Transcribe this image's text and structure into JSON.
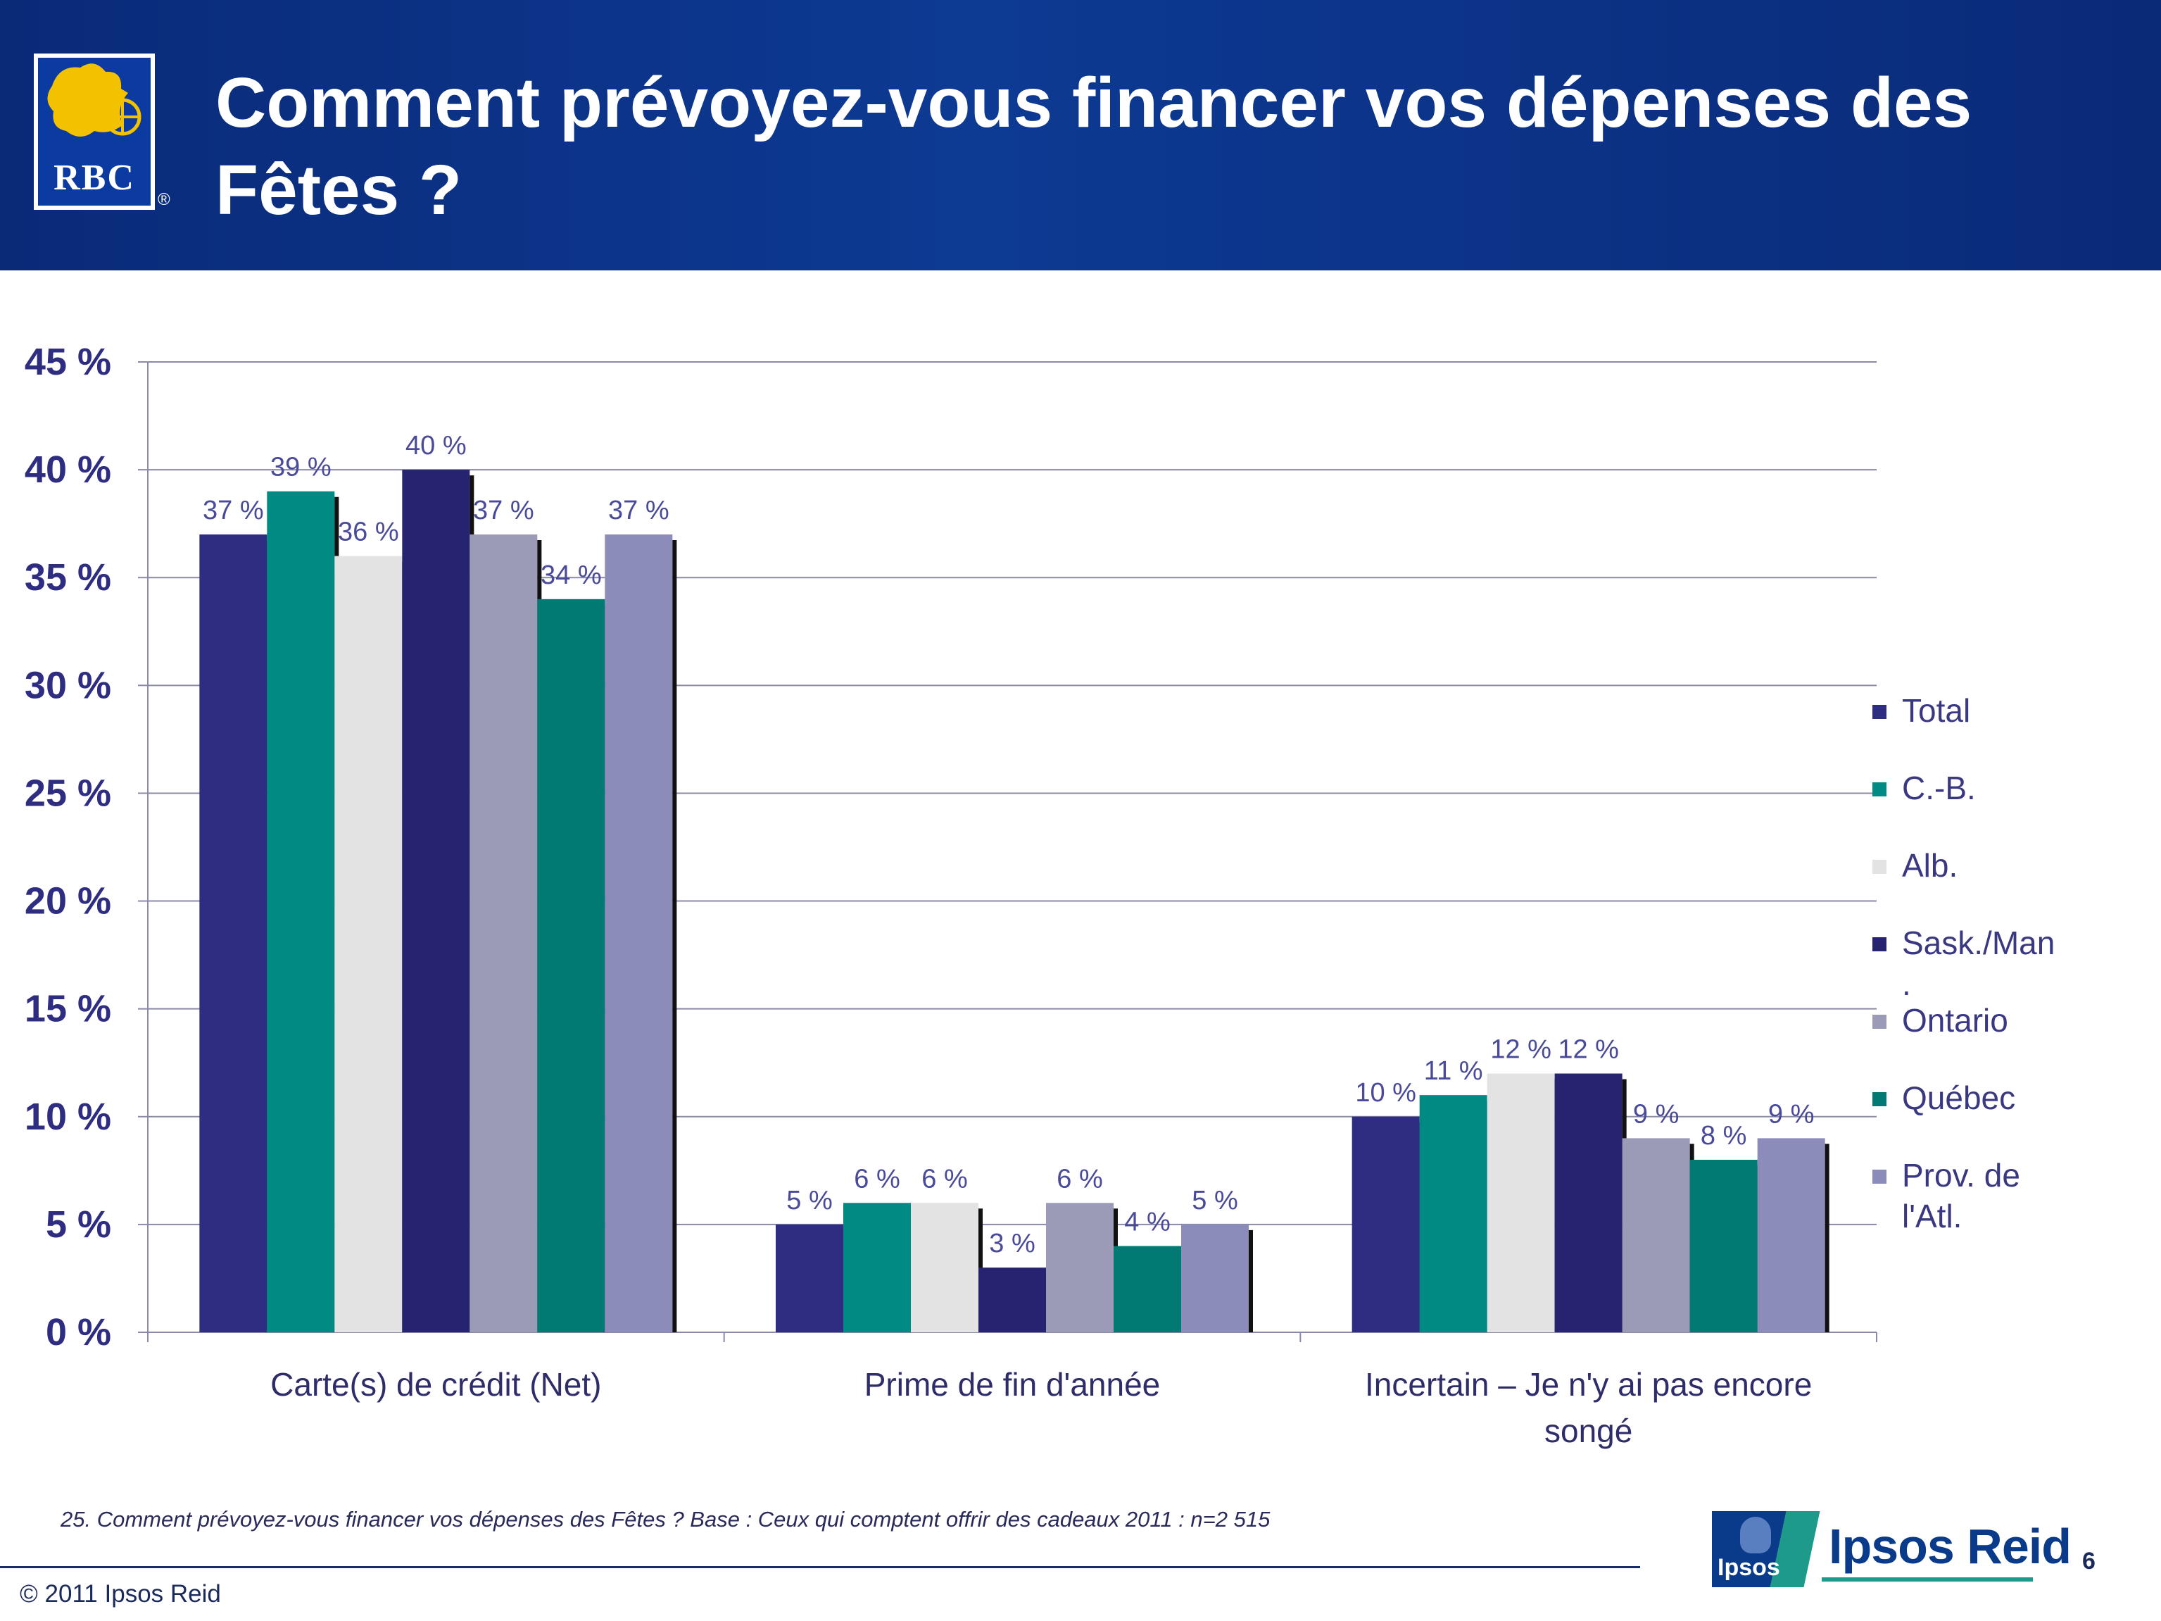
{
  "header": {
    "title": "Comment prévoyez-vous financer vos dépenses des Fêtes ?",
    "logo_text": "RBC",
    "registered_mark": "®"
  },
  "colors": {
    "header_bg": "#0d3a93",
    "total": "#2e2d82",
    "cb": "#008a84",
    "alb": "#e3e3e3",
    "sask": "#262470",
    "ontario": "#9b9bb8",
    "quebec": "#007a72",
    "atl": "#8c8cba"
  },
  "chart_data": {
    "type": "bar",
    "categories": [
      "Carte(s) de crédit (Net)",
      "Prime de fin d'année",
      "Incertain – Je n'y ai pas encore songé"
    ],
    "category_lines": [
      [
        "Carte(s) de crédit (Net)"
      ],
      [
        "Prime de fin d'année"
      ],
      [
        "Incertain – Je n'y ai pas encore",
        "songé"
      ]
    ],
    "series": [
      {
        "name": "Total",
        "values": [
          37,
          5,
          10
        ],
        "labels": [
          "37 %",
          "5 %",
          "10 %"
        ],
        "color": "#2e2d82"
      },
      {
        "name": "C.-B.",
        "values": [
          39,
          6,
          11
        ],
        "labels": [
          "39 %",
          "6 %",
          "11 %"
        ],
        "color": "#008a84"
      },
      {
        "name": "Alb.",
        "values": [
          36,
          6,
          12
        ],
        "labels": [
          "36 %",
          "6 %",
          "12 %"
        ],
        "color": "#e3e3e3"
      },
      {
        "name": "Sask./Man.",
        "values": [
          40,
          3,
          12
        ],
        "labels": [
          "40 %",
          "3 %",
          "12 %"
        ],
        "color": "#262470"
      },
      {
        "name": "Ontario",
        "values": [
          37,
          6,
          9
        ],
        "labels": [
          "37 %",
          "6 %",
          "9 %"
        ],
        "color": "#9b9bb8"
      },
      {
        "name": "Québec",
        "values": [
          34,
          4,
          8
        ],
        "labels": [
          "34 %",
          "4 %",
          "8 %"
        ],
        "color": "#007a72"
      },
      {
        "name": "Prov. de l'Atl.",
        "values": [
          37,
          5,
          9
        ],
        "labels": [
          "37 %",
          "5 %",
          "9 %"
        ],
        "color": "#8c8cba"
      }
    ],
    "y_ticks": [
      "0 %",
      "5 %",
      "10 %",
      "15 %",
      "20 %",
      "25 %",
      "30 %",
      "35 %",
      "40 %",
      "45 %"
    ],
    "ylim": [
      0,
      45
    ],
    "grid": true,
    "legend_position": "right"
  },
  "legend": [
    {
      "lines": [
        "Total"
      ],
      "color": "#2e2d82"
    },
    {
      "lines": [
        "C.-B."
      ],
      "color": "#008a84"
    },
    {
      "lines": [
        "Alb."
      ],
      "color": "#e3e3e3"
    },
    {
      "lines": [
        "Sask./Man",
        "."
      ],
      "color": "#262470"
    },
    {
      "lines": [
        "Ontario"
      ],
      "color": "#9b9bb8"
    },
    {
      "lines": [
        "Québec"
      ],
      "color": "#007a72"
    },
    {
      "lines": [
        "Prov. de",
        "l'Atl."
      ],
      "color": "#8c8cba"
    }
  ],
  "footer": {
    "note": "25. Comment prévoyez-vous financer vos dépenses des Fêtes ?  Base : Ceux qui comptent offrir des cadeaux 2011 : n=2 515",
    "copyright": "© 2011 Ipsos Reid",
    "ipsos_small": "Ipsos",
    "ipsos_brand": "Ipsos Reid",
    "page_number": "6"
  }
}
